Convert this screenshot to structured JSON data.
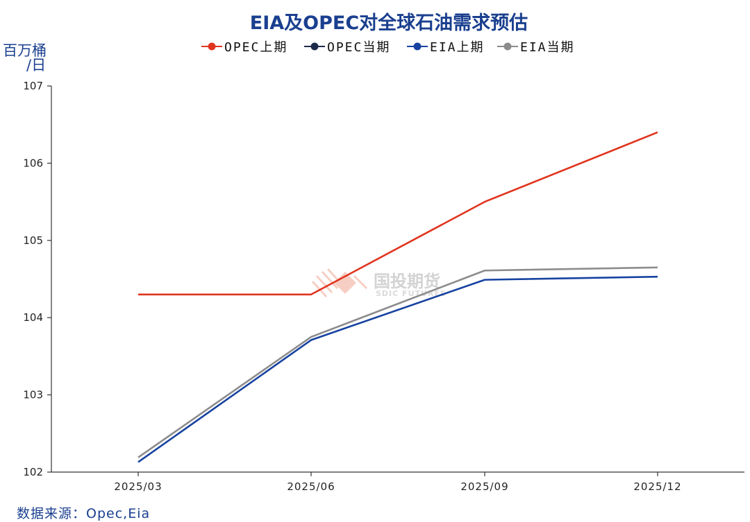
{
  "chart_data": {
    "type": "line",
    "title": "EIA及OPEC对全球石油需求预估",
    "ylabel": "百万桶/日",
    "ylabel_lines": [
      "百万桶",
      "/日"
    ],
    "xlabel": "",
    "categories": [
      "2025/03",
      "2025/06",
      "2025/09",
      "2025/12"
    ],
    "ylim": [
      102,
      107
    ],
    "yticks": [
      102,
      103,
      104,
      105,
      106,
      107
    ],
    "legend_position": "top-center",
    "series": [
      {
        "name": "OPEC上期",
        "color": "#e0341e",
        "values": [
          104.3,
          104.3,
          105.5,
          106.4
        ],
        "visible": true
      },
      {
        "name": "OPEC当期",
        "color": "#1c2a4a",
        "values": [
          null,
          null,
          null,
          null
        ],
        "visible": false
      },
      {
        "name": "EIA上期",
        "color": "#1642a0",
        "values": [
          102.13,
          103.71,
          104.49,
          104.53
        ],
        "visible": true
      },
      {
        "name": "EIA当期",
        "color": "#8c8c8c",
        "values": [
          102.19,
          103.75,
          104.61,
          104.65
        ],
        "visible": true
      }
    ],
    "source": "数据来源：Opec,Eia",
    "watermark": {
      "cn": "国投期货",
      "en": "SDIC FUTURES"
    }
  }
}
